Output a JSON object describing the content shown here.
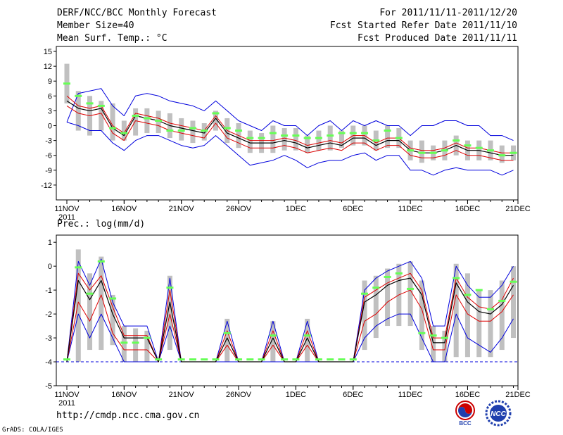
{
  "header": {
    "title": "DERF/NCC/BCC Monthly Forecast",
    "member_size": "Member Size=40",
    "variable": "Mean Surf. Temp.: °C",
    "period": "For 2011/11/11-2011/12/20",
    "fcst_started": "Fcst Started Refer Date 2011/11/10",
    "fcst_produced": "Fcst Produced Date 2011/11/11"
  },
  "footer": {
    "url": "http://cmdp.ncc.cma.gov.cn",
    "credit": "GrADS: COLA/IGES",
    "logo_bcc": "BCC",
    "logo_ncc": "NCC"
  },
  "colors": {
    "spread_bar": "#c0c0c0",
    "median_marker": "#66ff55",
    "envelope": "#0000dd",
    "percentile": "#dd0000",
    "mean": "#000000",
    "baseline": "#0000dd"
  },
  "chart_data": [
    {
      "type": "line",
      "title": "Mean Surf. Temp.: °C",
      "x_tick_labels": [
        "11NOV",
        "16NOV",
        "21NOV",
        "26NOV",
        "1DEC",
        "6DEC",
        "11DEC",
        "16DEC",
        "21DEC"
      ],
      "x_year_label": "2011",
      "ylim": [
        -15,
        16
      ],
      "y_ticks": [
        -12,
        -9,
        -6,
        -3,
        0,
        3,
        6,
        9,
        12,
        15
      ],
      "days": 40,
      "series": [
        {
          "name": "max",
          "values": [
            0.7,
            6.5,
            7,
            7.5,
            4,
            2,
            6,
            6.5,
            6,
            5,
            4.5,
            4,
            3,
            5,
            3,
            1,
            0,
            -1,
            1,
            0,
            0,
            -2,
            0,
            1,
            -1,
            1,
            0,
            1,
            0,
            0,
            -2,
            0,
            0,
            1,
            1,
            0,
            0,
            -2,
            -2,
            -3
          ]
        },
        {
          "name": "p75",
          "values": [
            6,
            4,
            3.5,
            4,
            0,
            -1.5,
            2.5,
            2,
            1.5,
            0.5,
            0,
            -0.5,
            -1,
            2,
            -1,
            -2,
            -3,
            -3,
            -3,
            -2.5,
            -3,
            -4,
            -3.5,
            -3,
            -3.5,
            -2,
            -2,
            -3.5,
            -2.5,
            -2.5,
            -4.5,
            -5,
            -5,
            -4.5,
            -3.5,
            -4.5,
            -4.5,
            -5,
            -5.5,
            -5.5
          ]
        },
        {
          "name": "mean",
          "values": [
            5,
            3.5,
            3,
            3.5,
            -0.5,
            -2,
            2,
            1.5,
            1,
            0,
            -0.5,
            -1,
            -1.5,
            1.5,
            -1.5,
            -2.5,
            -3.5,
            -3.5,
            -3.5,
            -3,
            -3.5,
            -4.5,
            -4,
            -3.5,
            -4,
            -2.5,
            -2.5,
            -4,
            -3,
            -3,
            -5,
            -5.5,
            -5.5,
            -5,
            -4,
            -5,
            -5,
            -5.5,
            -6,
            -6
          ]
        },
        {
          "name": "p25",
          "values": [
            4,
            2.5,
            2,
            2.5,
            -1.5,
            -3,
            1,
            0.5,
            0,
            -1,
            -1.5,
            -2,
            -2.5,
            0.5,
            -2.5,
            -3.5,
            -4.5,
            -4.5,
            -4.5,
            -4,
            -4.5,
            -5.5,
            -5,
            -4.5,
            -5,
            -3.5,
            -3.5,
            -5,
            -4,
            -4,
            -6,
            -6.5,
            -6.5,
            -6,
            -5,
            -6,
            -6,
            -6.5,
            -7,
            -7
          ]
        },
        {
          "name": "min",
          "values": [
            0.7,
            0,
            -1,
            -1,
            -3.5,
            -5,
            -3,
            -2,
            -2,
            -3,
            -4,
            -4.5,
            -4,
            -2,
            -4,
            -6,
            -8,
            -7.5,
            -7,
            -6,
            -7,
            -8.5,
            -7.5,
            -7,
            -7,
            -6,
            -5.5,
            -7,
            -6,
            -6,
            -9,
            -9,
            -10,
            -9,
            -8.5,
            -9,
            -9,
            -9,
            -10,
            -9
          ]
        },
        {
          "name": "median",
          "values": [
            8.5,
            6,
            4.5,
            4,
            -0.5,
            -1.5,
            2,
            1.5,
            1,
            -1,
            -1,
            -0.5,
            -1,
            2.5,
            -0.5,
            -1,
            -2.5,
            -2.5,
            -1.5,
            -2,
            -2,
            -2.5,
            -2.5,
            -2,
            -1.5,
            -1.5,
            -1.5,
            -3,
            -1,
            -2.5,
            -5,
            -5.5,
            -5.5,
            -5,
            -3,
            -4,
            -4.5,
            -5,
            -6,
            -5.5
          ]
        },
        {
          "name": "spread_high",
          "values": [
            12.5,
            7,
            6,
            5,
            4.5,
            1,
            3.5,
            3.5,
            3,
            2.5,
            1.5,
            1,
            0.5,
            3,
            1.5,
            0.5,
            -1,
            -1.5,
            0,
            -0.5,
            -0.5,
            -2,
            -1,
            0,
            -1,
            0,
            0,
            -1,
            0,
            -0.5,
            -3,
            -3,
            -4,
            -3,
            -2,
            -3,
            -3,
            -3,
            -4,
            -4
          ]
        },
        {
          "name": "spread_low",
          "values": [
            4.5,
            -1,
            -2,
            -1,
            -3,
            -3,
            -2,
            -1.5,
            -1.5,
            -2.5,
            -3,
            -3.5,
            -3,
            -1,
            -3.5,
            -4.5,
            -5.5,
            -5.5,
            -5.5,
            -5,
            -5,
            -5.5,
            -5,
            -5,
            -4.5,
            -4,
            -4,
            -5,
            -4.5,
            -4.5,
            -7,
            -7.5,
            -7,
            -7,
            -6,
            -7,
            -7,
            -7,
            -7.5,
            -7
          ]
        }
      ]
    },
    {
      "type": "line",
      "title": "Prec.: log(mm/d)",
      "x_tick_labels": [
        "11NOV",
        "16NOV",
        "21NOV",
        "26NOV",
        "1DEC",
        "6DEC",
        "11DEC",
        "16DEC",
        "21DEC"
      ],
      "x_year_label": "2011",
      "ylim": [
        -5,
        1.3
      ],
      "y_ticks": [
        -5,
        -4,
        -3,
        -2,
        -1,
        0,
        1
      ],
      "days": 40,
      "series": [
        {
          "name": "max",
          "values": [
            -4,
            0.2,
            -0.8,
            0.3,
            -1.5,
            -2.5,
            -2.5,
            -2.5,
            -4,
            -0.5,
            -4,
            -4,
            -4,
            -4,
            -2.3,
            -4,
            -4,
            -4,
            -2.3,
            -4,
            -4,
            -2.3,
            -4,
            -4,
            -4,
            -4,
            -1,
            -0.5,
            -0.2,
            0,
            0.2,
            -0.5,
            -2.5,
            -2.5,
            0,
            -0.8,
            -1.3,
            -1.3,
            -0.8,
            0
          ]
        },
        {
          "name": "p75",
          "values": [
            -4,
            -0.3,
            -1,
            -0.4,
            -1.7,
            -2.9,
            -2.9,
            -2.9,
            -4,
            -1,
            -4,
            -4,
            -4,
            -4,
            -2.7,
            -4,
            -4,
            -4,
            -2.7,
            -4,
            -4,
            -2.7,
            -4,
            -4,
            -4,
            -4,
            -1.3,
            -1,
            -0.7,
            -0.5,
            -0.3,
            -1,
            -3,
            -3,
            -0.5,
            -1.3,
            -1.7,
            -1.8,
            -1.4,
            -0.5
          ]
        },
        {
          "name": "mean",
          "values": [
            -4,
            -0.6,
            -1.4,
            -0.6,
            -2,
            -3,
            -3,
            -3,
            -4,
            -1.5,
            -4,
            -4,
            -4,
            -4,
            -3,
            -4,
            -4,
            -4,
            -3,
            -4,
            -4,
            -3,
            -4,
            -4,
            -4,
            -4,
            -1.5,
            -1.2,
            -0.8,
            -0.6,
            -0.5,
            -1.2,
            -3.2,
            -3.2,
            -0.7,
            -1.5,
            -1.9,
            -2,
            -1.6,
            -0.8
          ]
        },
        {
          "name": "p25",
          "values": [
            -4,
            -1.5,
            -2.3,
            -1.2,
            -2.8,
            -3.5,
            -3.5,
            -3.5,
            -4,
            -2,
            -4,
            -4,
            -4,
            -4,
            -3.3,
            -4,
            -4,
            -4,
            -3.3,
            -4,
            -4,
            -3.3,
            -4,
            -4,
            -4,
            -4,
            -2.3,
            -2,
            -1.5,
            -1.2,
            -1,
            -1.8,
            -3.5,
            -3.5,
            -1.2,
            -2,
            -2.3,
            -2.3,
            -1.9,
            -1.2
          ]
        },
        {
          "name": "min",
          "values": [
            -4,
            -2,
            -3,
            -2,
            -3,
            -4,
            -4,
            -4,
            -4,
            -2.5,
            -4,
            -4,
            -4,
            -4,
            -4,
            -4,
            -4,
            -4,
            -4,
            -4,
            -4,
            -4,
            -4,
            -4,
            -4,
            -4,
            -3,
            -2.5,
            -2.2,
            -2,
            -2,
            -3,
            -4,
            -4,
            -2,
            -3,
            -3.3,
            -3.6,
            -3,
            -2.2
          ]
        },
        {
          "name": "median",
          "values": [
            -3.9,
            -0.05,
            -1.15,
            0.2,
            -1.35,
            -3.2,
            -3.2,
            -3,
            -3.9,
            -0.9,
            -3.9,
            -3.9,
            -3.9,
            -3.9,
            -2.8,
            -3.9,
            -3.9,
            -3.9,
            -2.9,
            -3.9,
            -3.9,
            -2.9,
            -3.9,
            -3.9,
            -3.9,
            -3.9,
            -1.15,
            -0.9,
            -0.45,
            -0.3,
            -0.95,
            -2.8,
            -2.9,
            -3,
            -0.5,
            -1.2,
            -1,
            -1.8,
            -1.45,
            -0.65
          ]
        },
        {
          "name": "spread_high",
          "values": [
            -4,
            0.7,
            -0.3,
            0.4,
            -1.2,
            -2.5,
            -2.6,
            -2.7,
            -4,
            -0.4,
            -4,
            -4,
            -4,
            -4,
            -2.2,
            -4,
            -4,
            -4,
            -2.3,
            -4,
            -4,
            -2.2,
            -4,
            -4,
            -4,
            -4,
            -0.6,
            -0.4,
            -0.1,
            0.1,
            0.2,
            -0.6,
            -2.5,
            -2.7,
            0.1,
            -0.3,
            -1,
            -1,
            -0.6,
            0
          ]
        },
        {
          "name": "spread_low",
          "values": [
            -4,
            -4,
            -3.5,
            -3.5,
            -3.3,
            -4,
            -4,
            -4,
            -4,
            -3.5,
            -4,
            -4,
            -4,
            -4,
            -4,
            -4,
            -4,
            -4,
            -4,
            -4,
            -4,
            -4,
            -4,
            -4,
            -4,
            -4,
            -3.5,
            -3,
            -2.5,
            -2.5,
            -2.5,
            -3.5,
            -4,
            -4,
            -3.8,
            -3.8,
            -3.8,
            -3.8,
            -3.5,
            -3
          ]
        },
        {
          "name": "baseline",
          "values": [
            -4,
            -4,
            -4,
            -4,
            -4,
            -4,
            -4,
            -4,
            -4,
            -4,
            -4,
            -4,
            -4,
            -4,
            -4,
            -4,
            -4,
            -4,
            -4,
            -4,
            -4,
            -4,
            -4,
            -4,
            -4,
            -4,
            -4,
            -4,
            -4,
            -4,
            -4,
            -4,
            -4,
            -4,
            -4,
            -4,
            -4,
            -4,
            -4,
            -4
          ]
        }
      ]
    }
  ]
}
